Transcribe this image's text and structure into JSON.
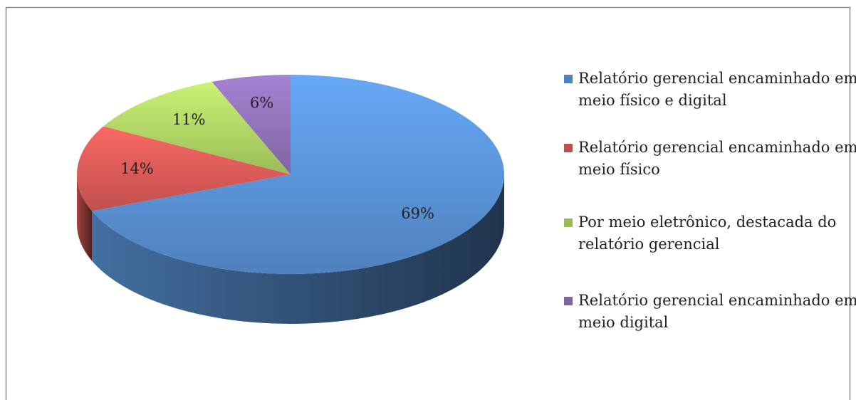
{
  "chart_data": {
    "type": "pie",
    "categories": [
      "Relatório gerencial encaminhado em meio físico e digital",
      "Relatório gerencial encaminhado em meio físico",
      "Por meio eletrônico, destacada do relatório gerencial",
      "Relatório gerencial encaminhado em meio digital"
    ],
    "values": [
      69,
      14,
      11,
      6
    ],
    "value_labels": [
      "69%",
      "14%",
      "11%",
      "6%"
    ],
    "colors": [
      "#4f81bd",
      "#c0504d",
      "#9bbb59",
      "#8064a2"
    ],
    "legend": "right"
  }
}
